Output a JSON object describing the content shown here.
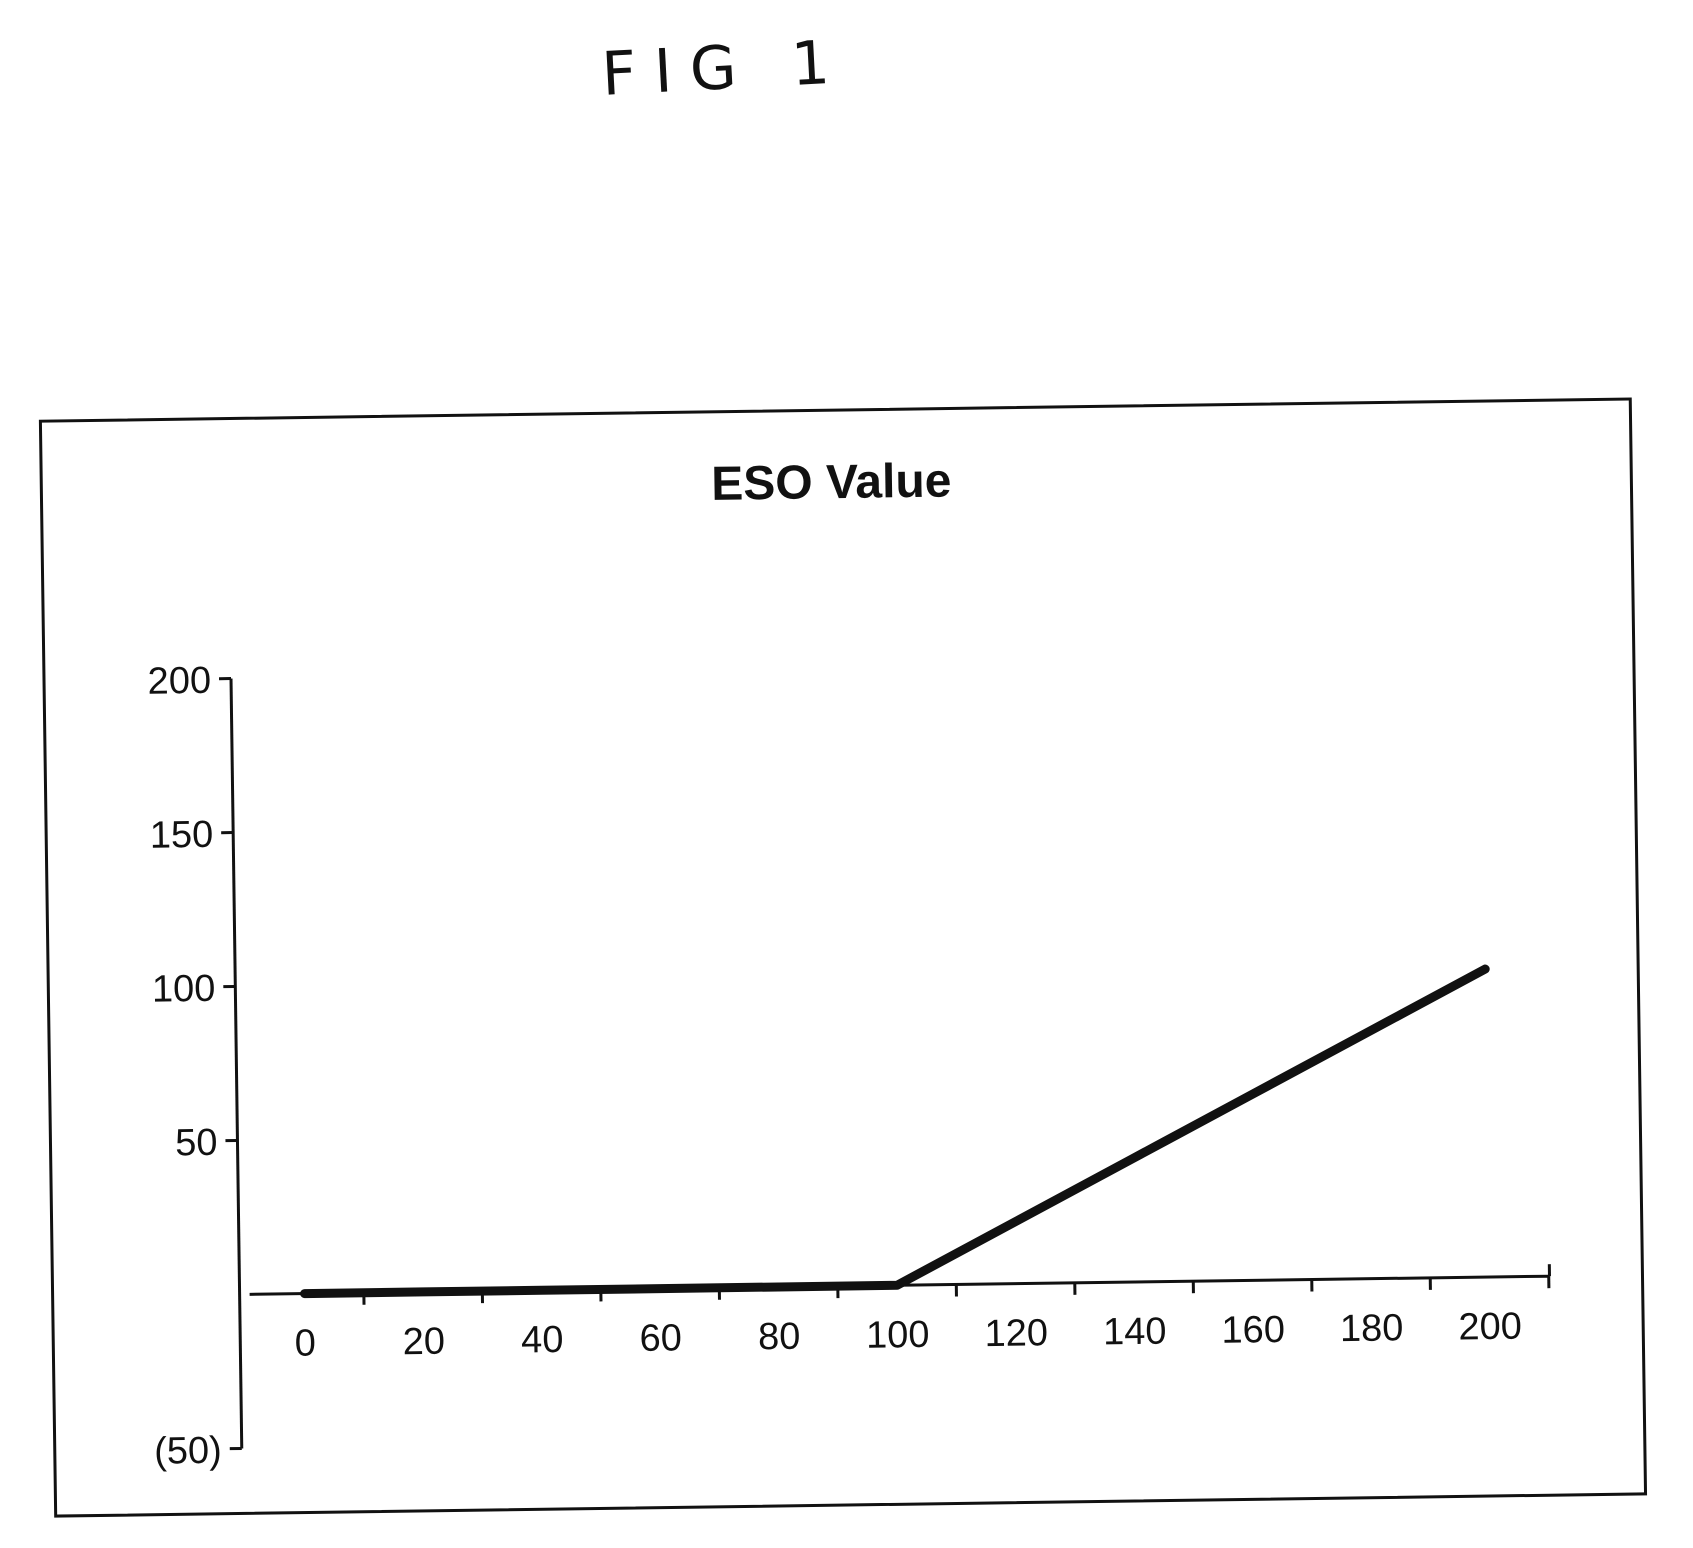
{
  "figure_label": "FIG 1",
  "chart_data": {
    "type": "line",
    "title": "ESO Value",
    "xlabel": "",
    "ylabel": "",
    "x": [
      0,
      20,
      40,
      60,
      80,
      100,
      120,
      140,
      160,
      180,
      200
    ],
    "series": [
      {
        "values": [
          0,
          0,
          0,
          0,
          0,
          0,
          20,
          40,
          60,
          80,
          100
        ]
      }
    ],
    "xticks": [
      0,
      20,
      40,
      60,
      80,
      100,
      120,
      140,
      160,
      180,
      200
    ],
    "xtick_labels": [
      "0",
      "20",
      "40",
      "60",
      "80",
      "100",
      "120",
      "140",
      "160",
      "180",
      "200"
    ],
    "yticks": [
      200,
      150,
      100,
      50,
      -50
    ],
    "ytick_labels": [
      "200",
      "150",
      "100",
      "50",
      "(50)"
    ],
    "xlim": [
      0,
      200
    ],
    "ylim": [
      -50,
      200
    ],
    "grid": false,
    "line_color": "#111111"
  }
}
